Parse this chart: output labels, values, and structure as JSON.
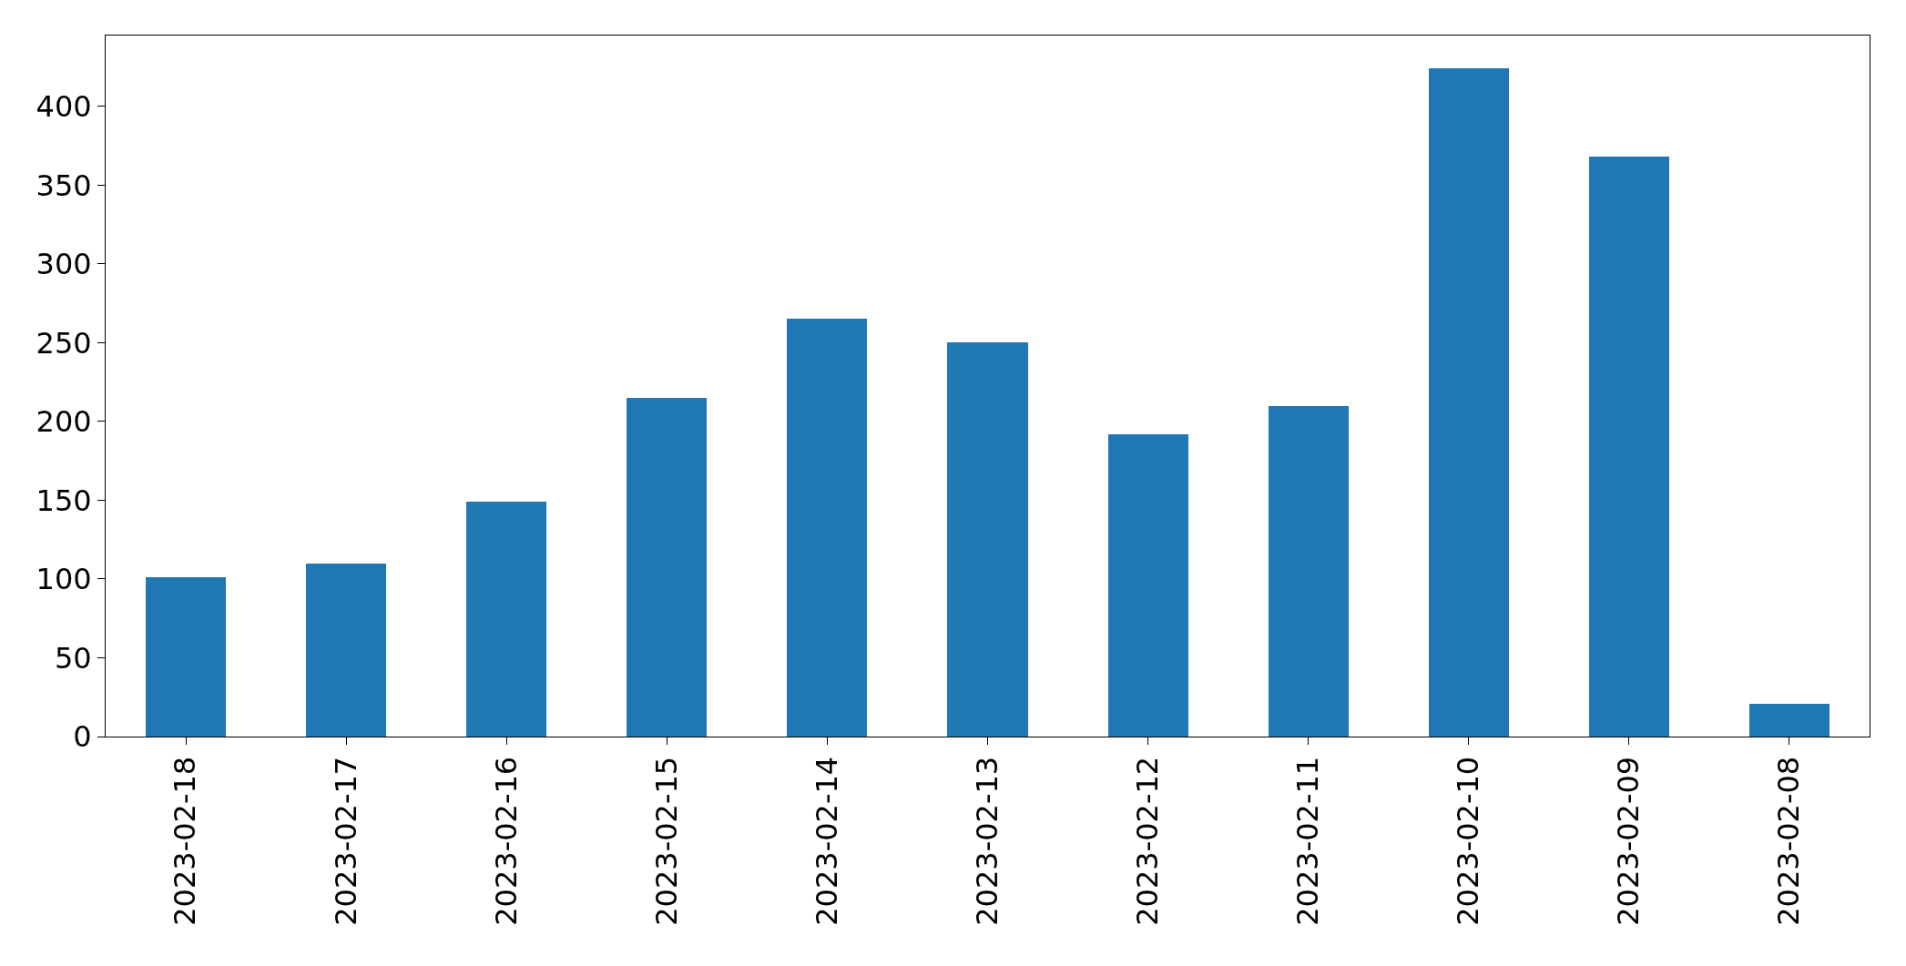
{
  "chart_data": {
    "type": "bar",
    "categories": [
      "2023-02-18",
      "2023-02-17",
      "2023-02-16",
      "2023-02-15",
      "2023-02-14",
      "2023-02-13",
      "2023-02-12",
      "2023-02-11",
      "2023-02-10",
      "2023-02-09",
      "2023-02-08"
    ],
    "values": [
      101,
      110,
      149,
      215,
      265,
      250,
      192,
      210,
      424,
      368,
      21
    ],
    "color": "#1f77b4",
    "ylim": [
      0,
      445
    ],
    "yticks": [
      0,
      50,
      100,
      150,
      200,
      250,
      300,
      350,
      400
    ],
    "grid": false
  }
}
